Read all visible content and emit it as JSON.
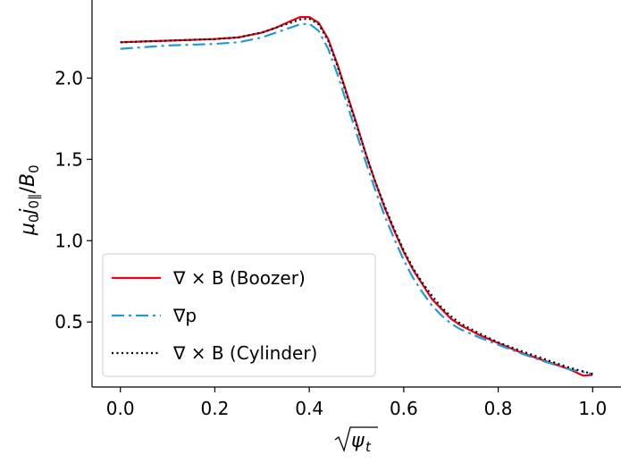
{
  "chart_data": {
    "type": "line",
    "xlabel": "√ψt",
    "ylabel": "μ0j0∥/B0",
    "xlim": [
      -0.06,
      1.06
    ],
    "ylim": [
      0.1,
      2.48
    ],
    "xticks": [
      0.0,
      0.2,
      0.4,
      0.6,
      0.8,
      1.0
    ],
    "xtick_labels": [
      "0.0",
      "0.2",
      "0.4",
      "0.6",
      "0.8",
      "1.0"
    ],
    "yticks": [
      0.5,
      1.0,
      1.5,
      2.0
    ],
    "ytick_labels": [
      "0.5",
      "1.0",
      "1.5",
      "2.0"
    ],
    "grid": false,
    "legend_position": "lower-left",
    "series": [
      {
        "name": "∇ × B (Boozer)",
        "color": "#e8001a",
        "style": "solid",
        "x": [
          0.0,
          0.05,
          0.1,
          0.15,
          0.2,
          0.25,
          0.3,
          0.33,
          0.36,
          0.38,
          0.4,
          0.42,
          0.44,
          0.46,
          0.48,
          0.5,
          0.52,
          0.54,
          0.56,
          0.58,
          0.6,
          0.62,
          0.64,
          0.66,
          0.68,
          0.7,
          0.72,
          0.74,
          0.76,
          0.8,
          0.85,
          0.9,
          0.95,
          0.98,
          1.0
        ],
        "y": [
          2.22,
          2.225,
          2.23,
          2.235,
          2.24,
          2.25,
          2.28,
          2.31,
          2.35,
          2.375,
          2.375,
          2.34,
          2.24,
          2.08,
          1.9,
          1.72,
          1.53,
          1.36,
          1.2,
          1.06,
          0.93,
          0.82,
          0.73,
          0.64,
          0.58,
          0.52,
          0.48,
          0.45,
          0.42,
          0.37,
          0.31,
          0.26,
          0.21,
          0.17,
          0.175
        ]
      },
      {
        "name": "∇p",
        "color": "#1f9bd7",
        "style": "dashdot",
        "x": [
          0.0,
          0.05,
          0.1,
          0.15,
          0.2,
          0.25,
          0.3,
          0.33,
          0.36,
          0.38,
          0.4,
          0.42,
          0.44,
          0.46,
          0.48,
          0.5,
          0.52,
          0.54,
          0.56,
          0.58,
          0.6,
          0.62,
          0.64,
          0.66,
          0.68,
          0.7,
          0.72,
          0.74,
          0.76,
          0.8,
          0.85,
          0.9,
          0.95,
          1.0
        ],
        "y": [
          2.18,
          2.19,
          2.2,
          2.205,
          2.21,
          2.22,
          2.25,
          2.28,
          2.31,
          2.33,
          2.335,
          2.29,
          2.18,
          2.02,
          1.84,
          1.66,
          1.48,
          1.31,
          1.15,
          1.01,
          0.88,
          0.77,
          0.68,
          0.6,
          0.54,
          0.49,
          0.455,
          0.43,
          0.405,
          0.36,
          0.305,
          0.255,
          0.21,
          0.18
        ]
      },
      {
        "name": "∇ × B (Cylinder)",
        "color": "#000000",
        "style": "dotted",
        "x": [
          0.0,
          0.05,
          0.1,
          0.15,
          0.2,
          0.25,
          0.3,
          0.33,
          0.36,
          0.38,
          0.4,
          0.42,
          0.44,
          0.46,
          0.48,
          0.5,
          0.52,
          0.54,
          0.56,
          0.58,
          0.6,
          0.62,
          0.64,
          0.66,
          0.68,
          0.7,
          0.72,
          0.74,
          0.76,
          0.8,
          0.85,
          0.9,
          0.95,
          1.0
        ],
        "y": [
          2.22,
          2.225,
          2.23,
          2.235,
          2.24,
          2.25,
          2.28,
          2.31,
          2.34,
          2.36,
          2.365,
          2.33,
          2.23,
          2.07,
          1.89,
          1.71,
          1.53,
          1.36,
          1.21,
          1.07,
          0.94,
          0.83,
          0.74,
          0.66,
          0.59,
          0.535,
          0.49,
          0.46,
          0.43,
          0.375,
          0.32,
          0.27,
          0.22,
          0.18
        ]
      }
    ]
  }
}
